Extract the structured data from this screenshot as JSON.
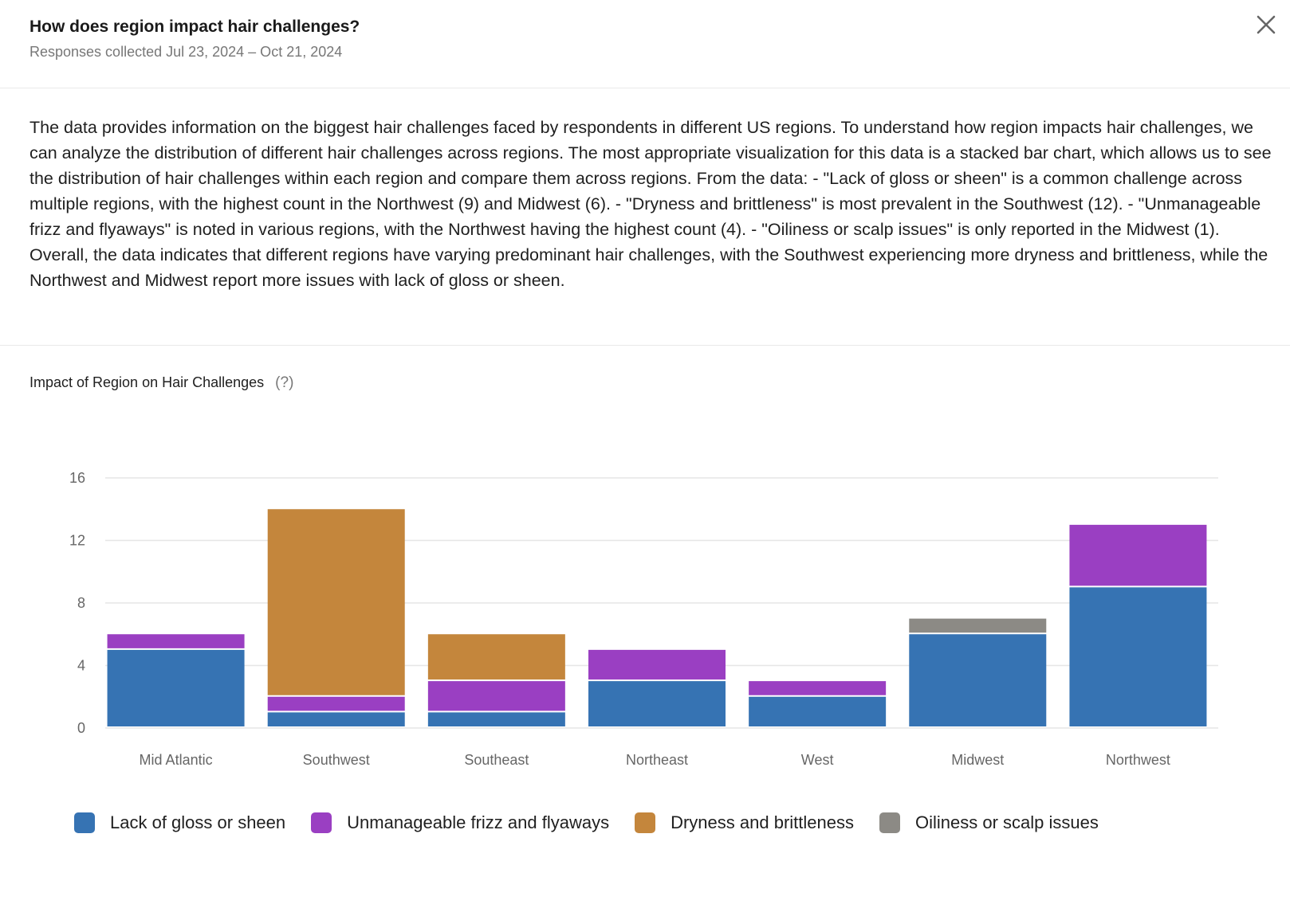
{
  "header": {
    "title": "How does region impact hair challenges?",
    "subtitle": "Responses collected Jul 23, 2024 – Oct 21, 2024",
    "close_icon": "close-icon"
  },
  "summary": {
    "text": "The data provides information on the biggest hair challenges faced by respondents in different US regions. To understand how region impacts hair challenges, we can analyze the distribution of different hair challenges across regions. The most appropriate visualization for this data is a stacked bar chart, which allows us to see the distribution of hair challenges within each region and compare them across regions. From the data: - \"Lack of gloss or sheen\" is a common challenge across multiple regions, with the highest count in the Northwest (9) and Midwest (6). - \"Dryness and brittleness\" is most prevalent in the Southwest (12). - \"Unmanageable frizz and flyaways\" is noted in various regions, with the Northwest having the highest count (4). - \"Oiliness or scalp issues\" is only reported in the Midwest (1). Overall, the data indicates that different regions have varying predominant hair challenges, with the Southwest experiencing more dryness and brittleness, while the Northwest and Midwest report more issues with lack of gloss or sheen."
  },
  "chart_title": {
    "label": "Impact of Region on Hair Challenges",
    "help": "(?)"
  },
  "chart_data": {
    "type": "bar",
    "stacked": true,
    "title": "Impact of Region on Hair Challenges",
    "xlabel": "",
    "ylabel": "",
    "categories": [
      "Mid Atlantic",
      "Southwest",
      "Southeast",
      "Northeast",
      "West",
      "Midwest",
      "Northwest"
    ],
    "ylim": [
      0,
      16
    ],
    "yticks": [
      0,
      4,
      8,
      12,
      16
    ],
    "grid": true,
    "legend_position": "bottom",
    "series": [
      {
        "name": "Lack of gloss or sheen",
        "color": "#3673B3",
        "values": [
          5,
          1,
          1,
          3,
          2,
          6,
          9
        ]
      },
      {
        "name": "Unmanageable frizz and flyaways",
        "color": "#9A3FC2",
        "values": [
          1,
          1,
          2,
          2,
          1,
          0,
          4
        ]
      },
      {
        "name": "Dryness and brittleness",
        "color": "#C4863C",
        "values": [
          0,
          12,
          3,
          0,
          0,
          0,
          0
        ]
      },
      {
        "name": "Oiliness or scalp issues",
        "color": "#8C8A85",
        "values": [
          0,
          0,
          0,
          0,
          0,
          1,
          0
        ]
      }
    ]
  }
}
